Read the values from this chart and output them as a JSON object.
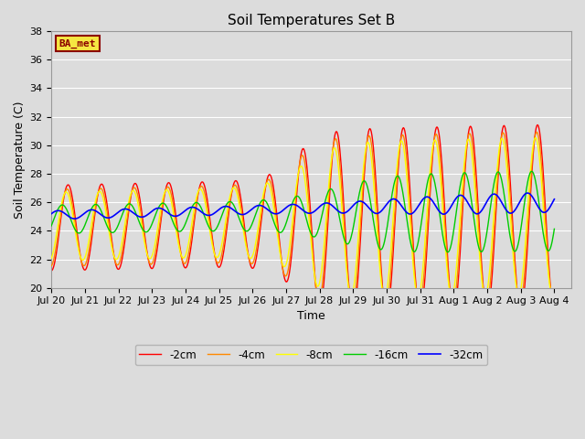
{
  "title": "Soil Temperatures Set B",
  "xlabel": "Time",
  "ylabel": "Soil Temperature (C)",
  "ylim": [
    20,
    38
  ],
  "legend_labels": [
    "-2cm",
    "-4cm",
    "-8cm",
    "-16cm",
    "-32cm"
  ],
  "line_colors": [
    "#ff0000",
    "#ff8800",
    "#ffff00",
    "#00cc00",
    "#0000ff"
  ],
  "line_widths": [
    1.0,
    1.0,
    1.0,
    1.0,
    1.2
  ],
  "bg_color": "#dcdcdc",
  "plot_bg_color": "#dcdcdc",
  "label_text": "BA_met",
  "label_bg": "#f5e642",
  "label_border": "#8b0000",
  "xtick_labels": [
    "Jul 20",
    "Jul 21",
    "Jul 22",
    "Jul 23",
    "Jul 24",
    "Jul 25",
    "Jul 26",
    "Jul 27",
    "Jul 28",
    "Jul 29",
    "Jul 30",
    "Jul 31",
    "Aug 1",
    "Aug 2",
    "Aug 3",
    "Aug 4"
  ],
  "grid_color": "#ffffff",
  "title_fontsize": 11,
  "tick_fontsize": 8,
  "axis_fontsize": 9
}
